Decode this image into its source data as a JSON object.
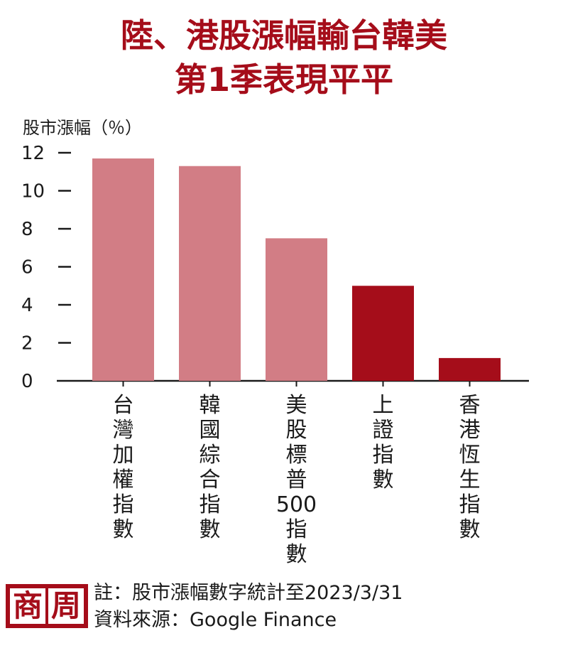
{
  "title": {
    "line1": "陸、港股漲幅輸台韓美",
    "line2": "第1季表現平平"
  },
  "chart_data": {
    "type": "bar",
    "ylabel": "股市漲幅（％）",
    "ylim": [
      0,
      12
    ],
    "yticks": [
      "0",
      "2",
      "4",
      "6",
      "8",
      "10",
      "12"
    ],
    "categories": [
      "台灣加權指數",
      "韓國綜合指數",
      "美股標普500指數",
      "上證指數",
      "香港恆生指數"
    ],
    "category_lines": [
      [
        "台",
        "灣",
        "加",
        "權",
        "指",
        "數"
      ],
      [
        "韓",
        "國",
        "綜",
        "合",
        "指",
        "數"
      ],
      [
        "美",
        "股",
        "標",
        "普",
        "500",
        "指",
        "數"
      ],
      [
        "上",
        "證",
        "指",
        "數"
      ],
      [
        "香",
        "港",
        "恆",
        "生",
        "指",
        "數"
      ]
    ],
    "values": [
      11.7,
      11.3,
      7.5,
      5.0,
      1.2
    ],
    "bar_colors": [
      "#d27d85",
      "#d27d85",
      "#d27d85",
      "#a50d1a",
      "#a50d1a"
    ],
    "grid": false
  },
  "logo": {
    "char1": "商",
    "char2": "周"
  },
  "notes": {
    "note1": "註：股市漲幅數字統計至2023/3/31",
    "note2": "資料來源：Google Finance"
  },
  "colors": {
    "accent": "#a50d1a",
    "light_bar": "#d27d85",
    "dark_bar": "#a50d1a",
    "axis": "#1a1a1a"
  }
}
